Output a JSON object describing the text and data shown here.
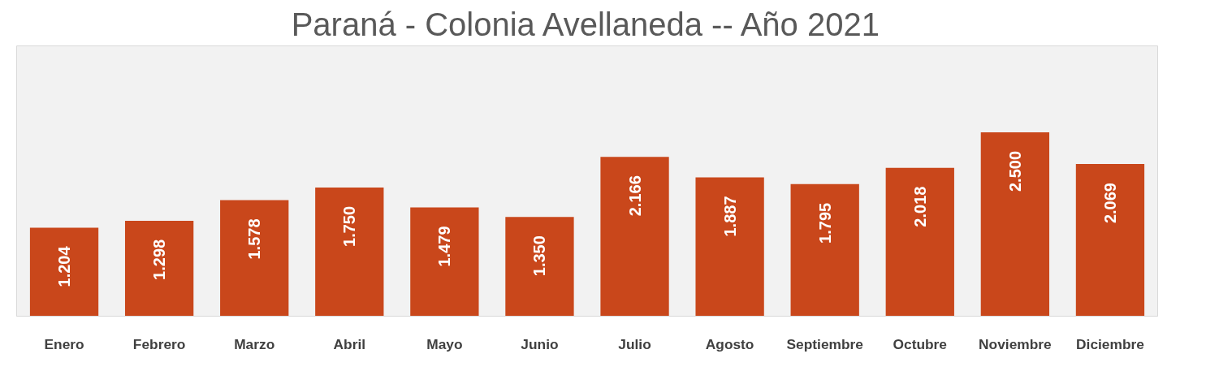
{
  "chart_data": {
    "type": "bar",
    "title": "Paraná - Colonia Avellaneda -- Año 2021",
    "categories": [
      "Enero",
      "Febrero",
      "Marzo",
      "Abril",
      "Mayo",
      "Junio",
      "Julio",
      "Agosto",
      "Septiembre",
      "Octubre",
      "Noviembre",
      "Diciembre"
    ],
    "values": [
      1204,
      1298,
      1578,
      1750,
      1479,
      1350,
      2166,
      1887,
      1795,
      2018,
      2500,
      2069
    ],
    "value_labels": [
      "1.204",
      "1.298",
      "1.578",
      "1.750",
      "1.479",
      "1.350",
      "2.166",
      "1.887",
      "1.795",
      "2.018",
      "2.500",
      "2.069"
    ],
    "color": "#c9471b",
    "grid": false
  }
}
